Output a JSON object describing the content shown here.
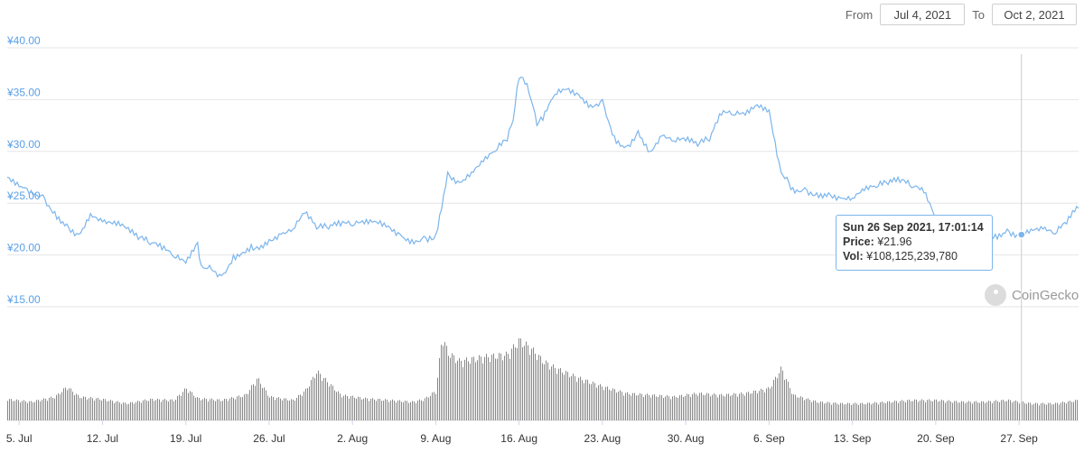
{
  "range": {
    "from_label": "From",
    "from_value": "Jul 4, 2021",
    "to_label": "To",
    "to_value": "Oct 2, 2021"
  },
  "tooltip": {
    "title": "Sun 26 Sep 2021, 17:01:14",
    "price_label": "Price:",
    "price_value": "¥21.96",
    "vol_label": "Vol:",
    "vol_value": "¥108,125,239,780"
  },
  "watermark": {
    "text": "CoinGecko"
  },
  "colors": {
    "line": "#7cb5ec",
    "volume": "#888888",
    "grid": "#e6e6e6",
    "y_tick": "#5aa0e6",
    "crosshair": "#cccccc"
  },
  "chart_data": {
    "type": "line",
    "title": "",
    "xlabel": "",
    "ylabel": "",
    "ylim": [
      15,
      40
    ],
    "y_ticks": [
      "¥15.00",
      "¥20.00",
      "¥25.00",
      "¥30.00",
      "¥35.00",
      "¥40.00"
    ],
    "y_tick_values": [
      15,
      20,
      25,
      30,
      35,
      40
    ],
    "x_ticks": [
      "5. Jul",
      "12. Jul",
      "19. Jul",
      "26. Jul",
      "2. Aug",
      "9. Aug",
      "16. Aug",
      "23. Aug",
      "30. Aug",
      "6. Sep",
      "13. Sep",
      "20. Sep",
      "27. Sep"
    ],
    "x_tick_days": [
      1,
      8,
      15,
      22,
      29,
      36,
      43,
      50,
      57,
      64,
      71,
      78,
      85
    ],
    "x_range_days": [
      0,
      90
    ],
    "grid": true,
    "legend": "none",
    "series": [
      {
        "x": [
          0.0,
          1.5,
          3.0,
          4.0,
          5.0,
          6.0,
          7.0,
          8.0,
          9.5,
          11.0,
          12.0,
          13.0,
          14.0,
          15.0,
          16.0,
          16.3,
          17.0,
          18.0,
          19.0,
          20.5,
          21.0,
          22.0,
          23.0,
          24.0,
          25.0,
          26.0,
          27.0,
          28.0,
          29.0,
          30.0,
          31.0,
          32.0,
          33.0,
          34.0,
          35.0,
          35.5,
          36.0,
          37.0,
          38.0,
          39.0,
          40.0,
          41.0,
          42.0,
          42.5,
          43.0,
          43.5,
          44.0,
          44.5,
          45.0,
          46.0,
          47.0,
          48.0,
          49.0,
          50.0,
          51.0,
          52.0,
          53.0,
          54.0,
          55.0,
          56.0,
          57.0,
          58.0,
          59.0,
          60.0,
          61.0,
          62.0,
          63.0,
          64.0,
          65.0,
          65.5,
          66.0,
          67.0,
          68.0,
          69.0,
          70.0,
          71.0,
          72.0,
          73.0,
          74.0,
          75.0,
          76.0,
          77.0,
          78.0,
          79.0,
          80.0,
          81.0,
          82.0,
          83.0,
          84.0,
          85.0,
          86.0,
          87.0,
          88.0,
          89.0,
          90.0
        ],
        "y": [
          27.5,
          26.5,
          25.8,
          24.2,
          23.0,
          22.0,
          24.0,
          23.2,
          22.8,
          21.5,
          21.0,
          20.5,
          19.8,
          19.2,
          21.2,
          19.0,
          19.0,
          18.0,
          20.0,
          21.0,
          20.8,
          21.5,
          22.0,
          22.5,
          24.0,
          22.5,
          22.5,
          22.8,
          22.8,
          23.0,
          23.2,
          22.8,
          22.0,
          21.5,
          21.8,
          21.8,
          22.0,
          28.0,
          27.0,
          28.0,
          29.0,
          30.0,
          31.0,
          33.0,
          37.0,
          36.5,
          35.0,
          32.5,
          33.0,
          35.5,
          36.0,
          35.5,
          34.5,
          35.0,
          31.5,
          30.5,
          32.0,
          30.0,
          31.5,
          31.0,
          31.0,
          30.5,
          31.0,
          33.5,
          33.5,
          33.5,
          34.5,
          34.0,
          28.0,
          27.5,
          26.5,
          26.5,
          26.0,
          26.0,
          25.5,
          25.5,
          26.2,
          26.5,
          26.8,
          27.0,
          26.5,
          26.0,
          23.5,
          22.5,
          23.5,
          23.2,
          22.5,
          22.0,
          22.5,
          21.96,
          22.5,
          22.5,
          22.0,
          23.0,
          24.5
        ]
      }
    ],
    "volume_series": {
      "x": [
        0,
        2,
        4,
        5,
        6,
        8,
        10,
        12,
        14,
        15,
        16,
        18,
        20,
        21,
        22,
        24,
        25,
        26,
        28,
        30,
        32,
        34,
        35,
        36,
        36.5,
        37,
        38,
        40,
        42,
        43,
        44,
        45,
        46,
        48,
        50,
        52,
        54,
        56,
        58,
        60,
        62,
        64,
        65,
        66,
        68,
        70,
        72,
        74,
        76,
        78,
        80,
        82,
        84,
        86,
        88,
        90
      ],
      "y": [
        0.25,
        0.22,
        0.28,
        0.4,
        0.28,
        0.25,
        0.2,
        0.25,
        0.24,
        0.38,
        0.26,
        0.24,
        0.3,
        0.5,
        0.28,
        0.24,
        0.35,
        0.58,
        0.3,
        0.26,
        0.24,
        0.22,
        0.25,
        0.35,
        1.0,
        0.8,
        0.7,
        0.75,
        0.78,
        0.95,
        0.85,
        0.7,
        0.62,
        0.5,
        0.4,
        0.32,
        0.3,
        0.28,
        0.32,
        0.3,
        0.32,
        0.38,
        0.62,
        0.3,
        0.22,
        0.2,
        0.2,
        0.22,
        0.24,
        0.24,
        0.22,
        0.22,
        0.24,
        0.2,
        0.2,
        0.24
      ]
    },
    "hover": {
      "x_day": 85.2,
      "price": 21.96
    }
  }
}
